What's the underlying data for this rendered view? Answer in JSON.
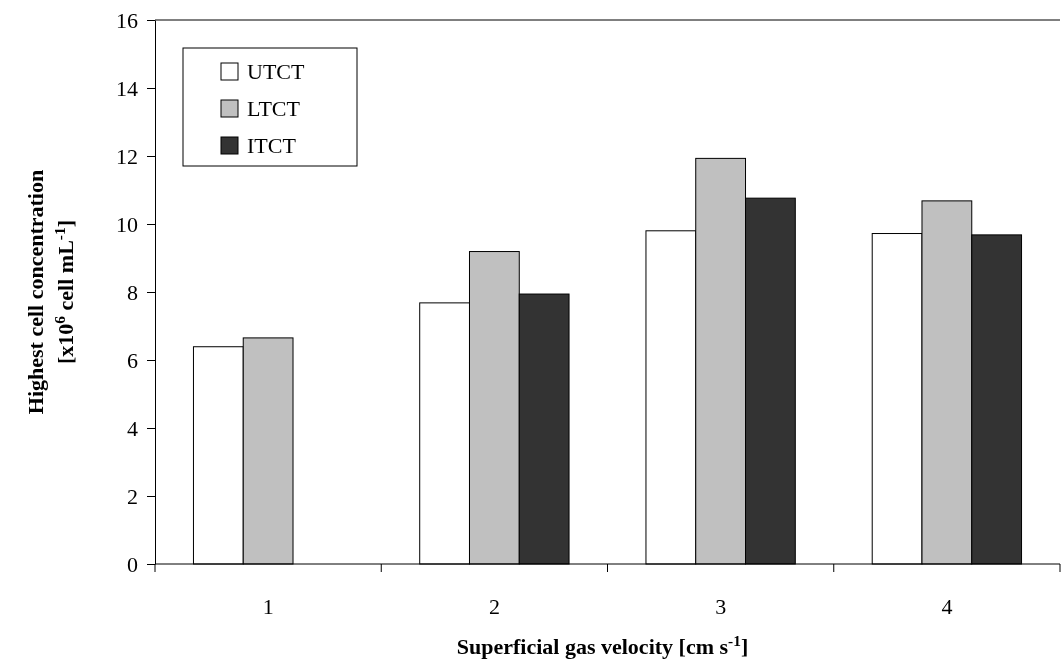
{
  "chart_data": {
    "type": "bar",
    "xlabel": "Superficial gas velocity [cm s$^{-1}$]",
    "ylabel": "Highest cell concentration\n[x10$^{6}$ cell mL$^{-1}$]",
    "categories": [
      "1",
      "2",
      "3",
      "4"
    ],
    "series": [
      {
        "name": "UTCT",
        "color": "#ffffff",
        "values": [
          6.39,
          7.68,
          9.8,
          9.72
        ]
      },
      {
        "name": "LTCT",
        "color": "#c0c0c0",
        "values": [
          6.65,
          9.19,
          11.93,
          10.68
        ]
      },
      {
        "name": "ITCT",
        "color": "#333333",
        "values": [
          null,
          7.94,
          10.76,
          9.68
        ]
      }
    ],
    "ylim": [
      0,
      16
    ],
    "yticks": [
      0,
      2,
      4,
      6,
      8,
      10,
      12,
      14,
      16
    ],
    "grid": false,
    "legend": "top left"
  }
}
